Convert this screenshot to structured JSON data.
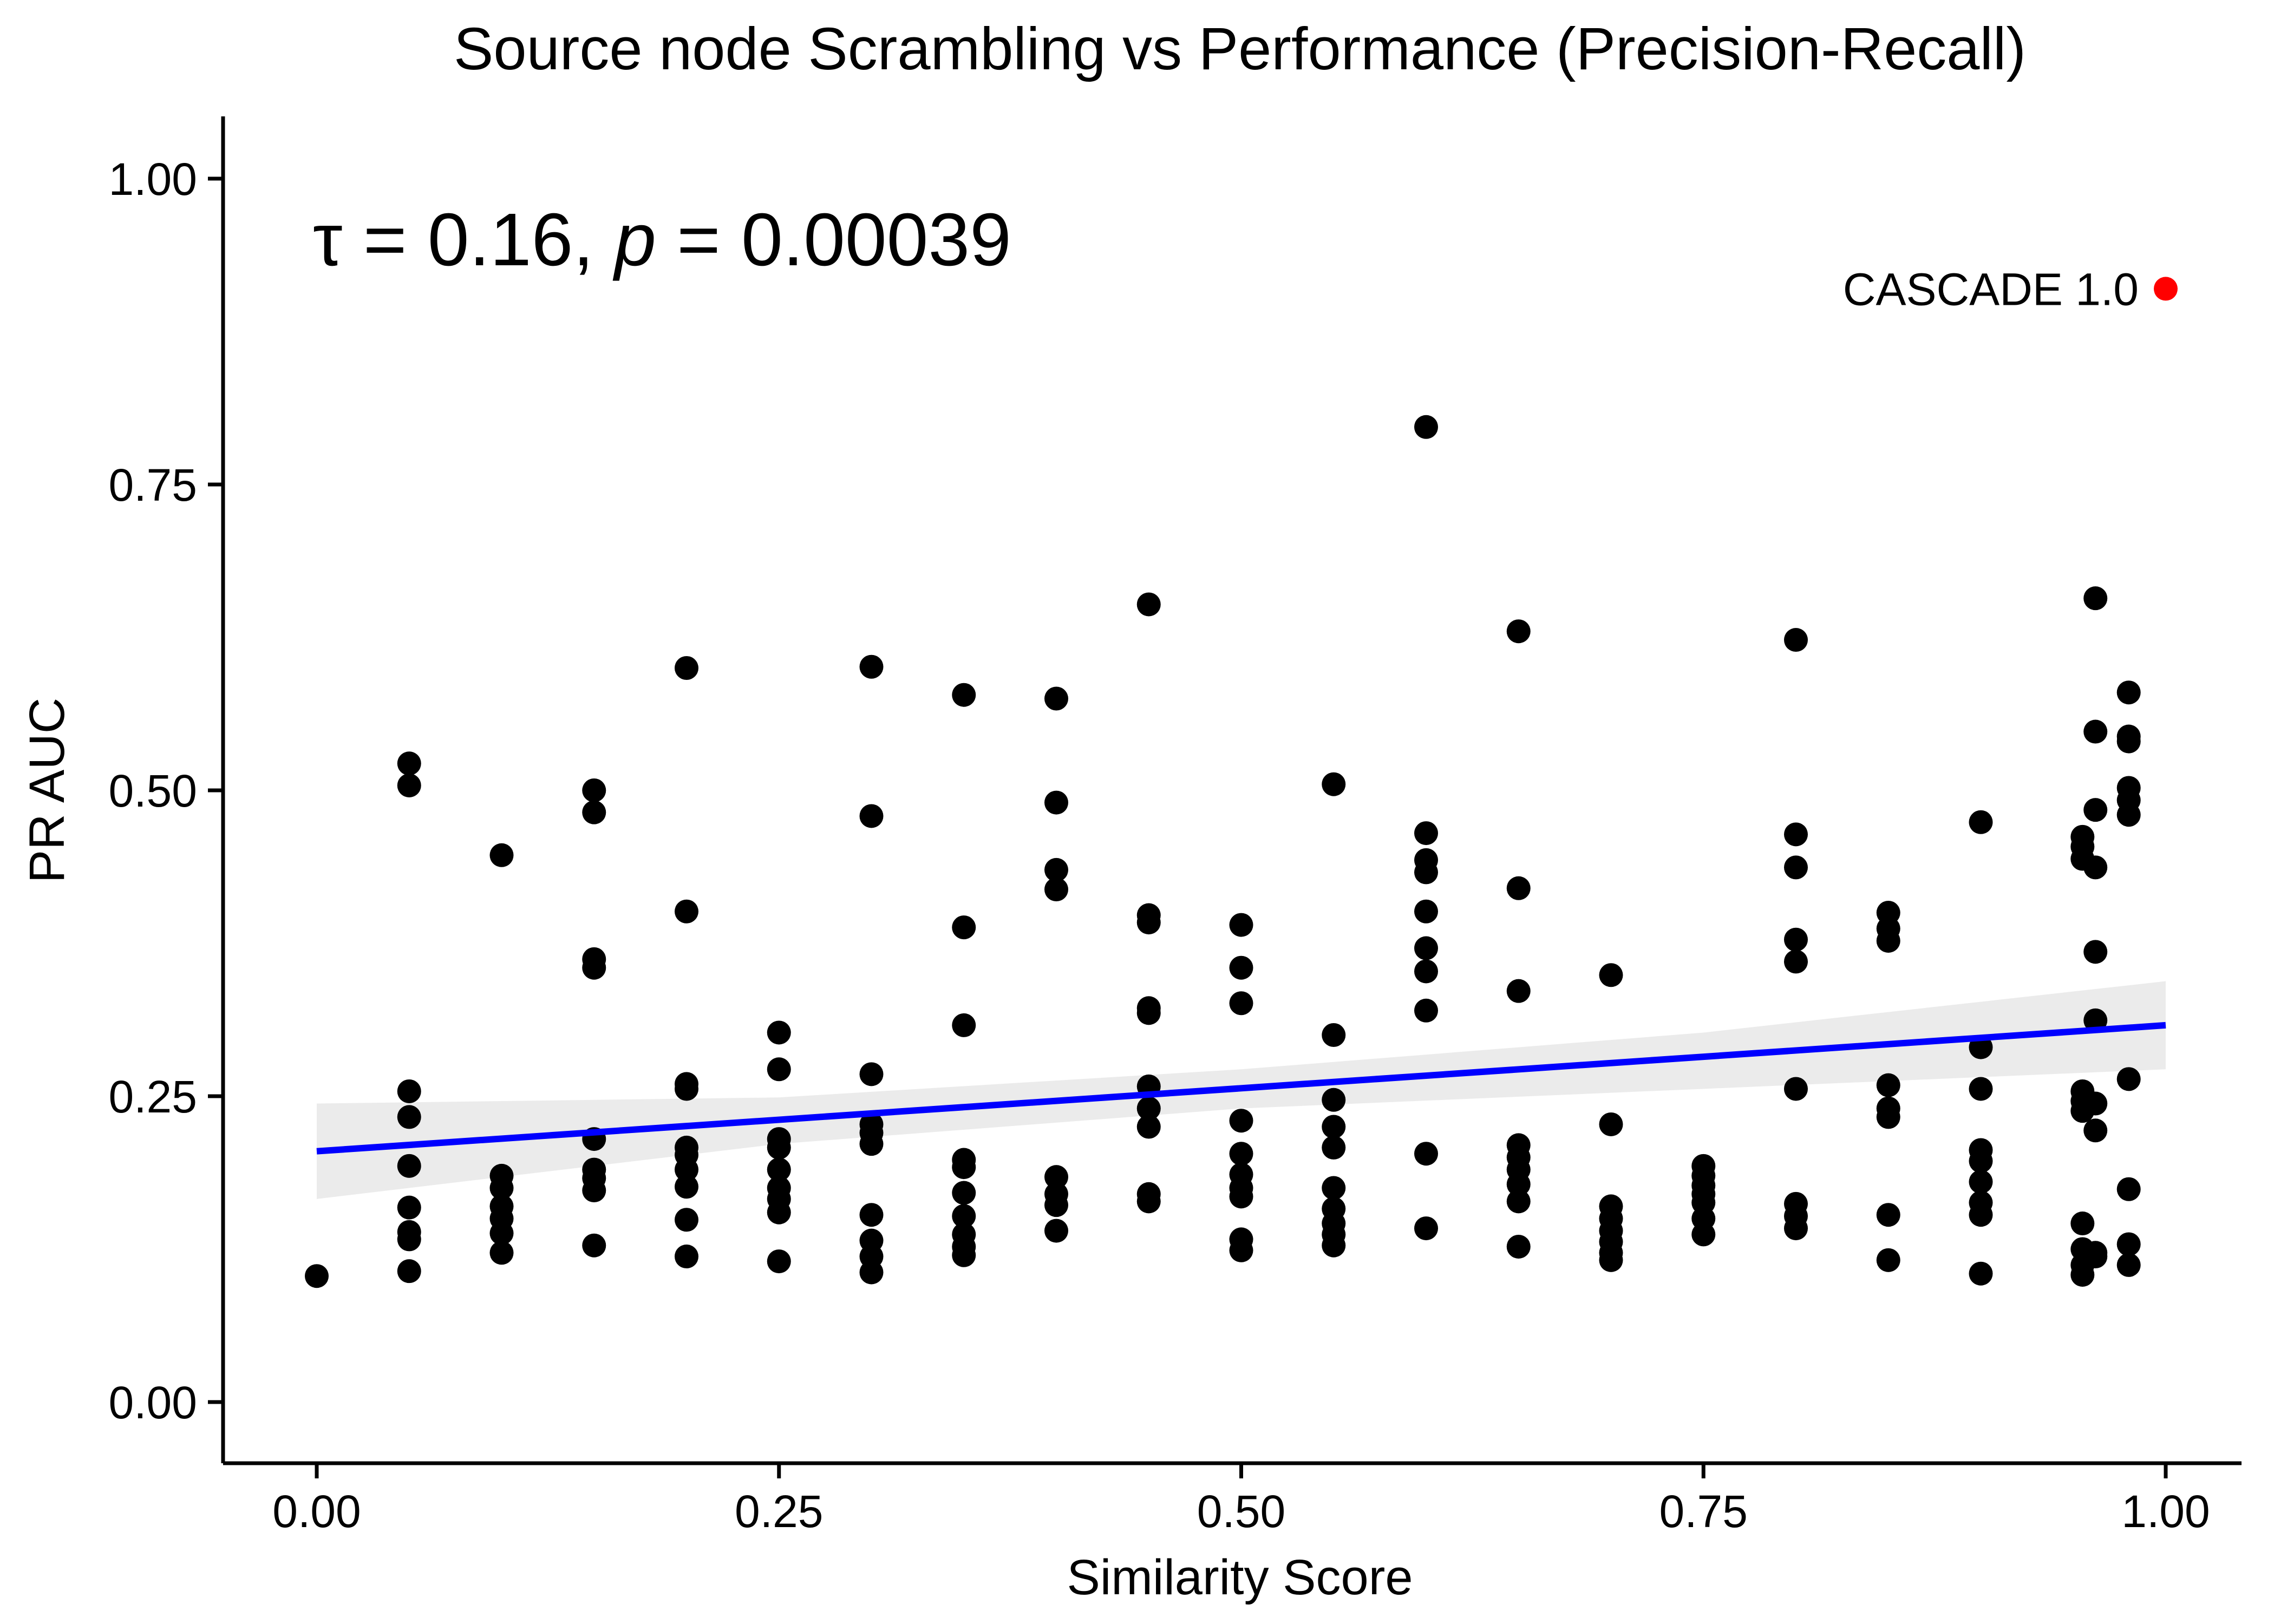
{
  "chart_data": {
    "type": "scatter",
    "title": "Source node Scrambling vs Performance (Precision-Recall)",
    "xlabel": "Similarity Score",
    "ylabel": "PR AUC",
    "xlim": [
      -0.05,
      1.05
    ],
    "ylim": [
      -0.05,
      1.05
    ],
    "x_ticks": [
      0.0,
      0.25,
      0.5,
      0.75,
      1.0
    ],
    "x_tick_labels": [
      "0.00",
      "0.25",
      "0.50",
      "0.75",
      "1.00"
    ],
    "y_ticks": [
      0.0,
      0.25,
      0.5,
      0.75,
      1.0
    ],
    "y_tick_labels": [
      "0.00",
      "0.25",
      "0.50",
      "0.75",
      "1.00"
    ],
    "grid": false,
    "annotation": {
      "tau_symbol": "τ",
      "tau_rest": " = 0.16, ",
      "p_symbol": "p",
      "p_rest": " = 0.00039"
    },
    "points": [
      {
        "x": 0.0,
        "y": 0.103
      },
      {
        "x": 0.05,
        "y": 0.522
      },
      {
        "x": 0.05,
        "y": 0.504
      },
      {
        "x": 0.05,
        "y": 0.254
      },
      {
        "x": 0.05,
        "y": 0.233
      },
      {
        "x": 0.05,
        "y": 0.193
      },
      {
        "x": 0.05,
        "y": 0.159
      },
      {
        "x": 0.05,
        "y": 0.139
      },
      {
        "x": 0.05,
        "y": 0.133
      },
      {
        "x": 0.05,
        "y": 0.107
      },
      {
        "x": 0.1,
        "y": 0.447
      },
      {
        "x": 0.1,
        "y": 0.185
      },
      {
        "x": 0.1,
        "y": 0.175
      },
      {
        "x": 0.1,
        "y": 0.16
      },
      {
        "x": 0.1,
        "y": 0.15
      },
      {
        "x": 0.1,
        "y": 0.138
      },
      {
        "x": 0.1,
        "y": 0.122
      },
      {
        "x": 0.15,
        "y": 0.5
      },
      {
        "x": 0.15,
        "y": 0.482
      },
      {
        "x": 0.15,
        "y": 0.362
      },
      {
        "x": 0.15,
        "y": 0.355
      },
      {
        "x": 0.15,
        "y": 0.215
      },
      {
        "x": 0.15,
        "y": 0.19
      },
      {
        "x": 0.15,
        "y": 0.183
      },
      {
        "x": 0.15,
        "y": 0.173
      },
      {
        "x": 0.15,
        "y": 0.128
      },
      {
        "x": 0.2,
        "y": 0.6
      },
      {
        "x": 0.2,
        "y": 0.401
      },
      {
        "x": 0.2,
        "y": 0.26
      },
      {
        "x": 0.2,
        "y": 0.256
      },
      {
        "x": 0.2,
        "y": 0.208
      },
      {
        "x": 0.2,
        "y": 0.202
      },
      {
        "x": 0.2,
        "y": 0.19
      },
      {
        "x": 0.2,
        "y": 0.176
      },
      {
        "x": 0.2,
        "y": 0.149
      },
      {
        "x": 0.2,
        "y": 0.119
      },
      {
        "x": 0.25,
        "y": 0.302
      },
      {
        "x": 0.25,
        "y": 0.272
      },
      {
        "x": 0.25,
        "y": 0.215
      },
      {
        "x": 0.25,
        "y": 0.208
      },
      {
        "x": 0.25,
        "y": 0.19
      },
      {
        "x": 0.25,
        "y": 0.175
      },
      {
        "x": 0.25,
        "y": 0.166
      },
      {
        "x": 0.25,
        "y": 0.155
      },
      {
        "x": 0.25,
        "y": 0.115
      },
      {
        "x": 0.3,
        "y": 0.601
      },
      {
        "x": 0.3,
        "y": 0.479
      },
      {
        "x": 0.3,
        "y": 0.268
      },
      {
        "x": 0.3,
        "y": 0.227
      },
      {
        "x": 0.3,
        "y": 0.22
      },
      {
        "x": 0.3,
        "y": 0.211
      },
      {
        "x": 0.3,
        "y": 0.153
      },
      {
        "x": 0.3,
        "y": 0.132
      },
      {
        "x": 0.3,
        "y": 0.119
      },
      {
        "x": 0.3,
        "y": 0.106
      },
      {
        "x": 0.35,
        "y": 0.578
      },
      {
        "x": 0.35,
        "y": 0.388
      },
      {
        "x": 0.35,
        "y": 0.308
      },
      {
        "x": 0.35,
        "y": 0.198
      },
      {
        "x": 0.35,
        "y": 0.192
      },
      {
        "x": 0.35,
        "y": 0.171
      },
      {
        "x": 0.35,
        "y": 0.152
      },
      {
        "x": 0.35,
        "y": 0.137
      },
      {
        "x": 0.35,
        "y": 0.127
      },
      {
        "x": 0.35,
        "y": 0.12
      },
      {
        "x": 0.4,
        "y": 0.575
      },
      {
        "x": 0.4,
        "y": 0.49
      },
      {
        "x": 0.4,
        "y": 0.435
      },
      {
        "x": 0.4,
        "y": 0.419
      },
      {
        "x": 0.4,
        "y": 0.184
      },
      {
        "x": 0.4,
        "y": 0.17
      },
      {
        "x": 0.4,
        "y": 0.161
      },
      {
        "x": 0.4,
        "y": 0.14
      },
      {
        "x": 0.45,
        "y": 0.652
      },
      {
        "x": 0.45,
        "y": 0.398
      },
      {
        "x": 0.45,
        "y": 0.392
      },
      {
        "x": 0.45,
        "y": 0.322
      },
      {
        "x": 0.45,
        "y": 0.318
      },
      {
        "x": 0.45,
        "y": 0.258
      },
      {
        "x": 0.45,
        "y": 0.24
      },
      {
        "x": 0.45,
        "y": 0.225
      },
      {
        "x": 0.45,
        "y": 0.17
      },
      {
        "x": 0.45,
        "y": 0.164
      },
      {
        "x": 0.5,
        "y": 0.39
      },
      {
        "x": 0.5,
        "y": 0.355
      },
      {
        "x": 0.5,
        "y": 0.326
      },
      {
        "x": 0.5,
        "y": 0.23
      },
      {
        "x": 0.5,
        "y": 0.203
      },
      {
        "x": 0.5,
        "y": 0.186
      },
      {
        "x": 0.5,
        "y": 0.175
      },
      {
        "x": 0.5,
        "y": 0.168
      },
      {
        "x": 0.5,
        "y": 0.133
      },
      {
        "x": 0.5,
        "y": 0.124
      },
      {
        "x": 0.55,
        "y": 0.505
      },
      {
        "x": 0.55,
        "y": 0.3
      },
      {
        "x": 0.55,
        "y": 0.247
      },
      {
        "x": 0.55,
        "y": 0.225
      },
      {
        "x": 0.55,
        "y": 0.208
      },
      {
        "x": 0.55,
        "y": 0.175
      },
      {
        "x": 0.55,
        "y": 0.158
      },
      {
        "x": 0.55,
        "y": 0.146
      },
      {
        "x": 0.55,
        "y": 0.137
      },
      {
        "x": 0.55,
        "y": 0.128
      },
      {
        "x": 0.6,
        "y": 0.797
      },
      {
        "x": 0.6,
        "y": 0.465
      },
      {
        "x": 0.6,
        "y": 0.443
      },
      {
        "x": 0.6,
        "y": 0.433
      },
      {
        "x": 0.6,
        "y": 0.401
      },
      {
        "x": 0.6,
        "y": 0.371
      },
      {
        "x": 0.6,
        "y": 0.352
      },
      {
        "x": 0.6,
        "y": 0.32
      },
      {
        "x": 0.6,
        "y": 0.203
      },
      {
        "x": 0.6,
        "y": 0.142
      },
      {
        "x": 0.65,
        "y": 0.63
      },
      {
        "x": 0.65,
        "y": 0.42
      },
      {
        "x": 0.65,
        "y": 0.336
      },
      {
        "x": 0.65,
        "y": 0.21
      },
      {
        "x": 0.65,
        "y": 0.2
      },
      {
        "x": 0.65,
        "y": 0.19
      },
      {
        "x": 0.65,
        "y": 0.178
      },
      {
        "x": 0.65,
        "y": 0.164
      },
      {
        "x": 0.65,
        "y": 0.127
      },
      {
        "x": 0.7,
        "y": 0.349
      },
      {
        "x": 0.7,
        "y": 0.227
      },
      {
        "x": 0.7,
        "y": 0.16
      },
      {
        "x": 0.7,
        "y": 0.15
      },
      {
        "x": 0.7,
        "y": 0.14
      },
      {
        "x": 0.7,
        "y": 0.131
      },
      {
        "x": 0.7,
        "y": 0.122
      },
      {
        "x": 0.7,
        "y": 0.116
      },
      {
        "x": 0.75,
        "y": 0.193
      },
      {
        "x": 0.75,
        "y": 0.185
      },
      {
        "x": 0.75,
        "y": 0.177
      },
      {
        "x": 0.75,
        "y": 0.17
      },
      {
        "x": 0.75,
        "y": 0.163
      },
      {
        "x": 0.75,
        "y": 0.15
      },
      {
        "x": 0.75,
        "y": 0.137
      },
      {
        "x": 0.8,
        "y": 0.623
      },
      {
        "x": 0.8,
        "y": 0.464
      },
      {
        "x": 0.8,
        "y": 0.437
      },
      {
        "x": 0.8,
        "y": 0.378
      },
      {
        "x": 0.8,
        "y": 0.36
      },
      {
        "x": 0.8,
        "y": 0.256
      },
      {
        "x": 0.8,
        "y": 0.162
      },
      {
        "x": 0.8,
        "y": 0.152
      },
      {
        "x": 0.8,
        "y": 0.142
      },
      {
        "x": 0.85,
        "y": 0.4
      },
      {
        "x": 0.85,
        "y": 0.387
      },
      {
        "x": 0.85,
        "y": 0.377
      },
      {
        "x": 0.85,
        "y": 0.259
      },
      {
        "x": 0.85,
        "y": 0.24
      },
      {
        "x": 0.85,
        "y": 0.233
      },
      {
        "x": 0.85,
        "y": 0.153
      },
      {
        "x": 0.85,
        "y": 0.116
      },
      {
        "x": 0.9,
        "y": 0.474
      },
      {
        "x": 0.9,
        "y": 0.29
      },
      {
        "x": 0.9,
        "y": 0.256
      },
      {
        "x": 0.9,
        "y": 0.206
      },
      {
        "x": 0.9,
        "y": 0.197
      },
      {
        "x": 0.9,
        "y": 0.18
      },
      {
        "x": 0.9,
        "y": 0.163
      },
      {
        "x": 0.9,
        "y": 0.153
      },
      {
        "x": 0.9,
        "y": 0.105
      },
      {
        "x": 0.955,
        "y": 0.462
      },
      {
        "x": 0.955,
        "y": 0.454
      },
      {
        "x": 0.955,
        "y": 0.444
      },
      {
        "x": 0.955,
        "y": 0.254
      },
      {
        "x": 0.955,
        "y": 0.246
      },
      {
        "x": 0.955,
        "y": 0.238
      },
      {
        "x": 0.955,
        "y": 0.146
      },
      {
        "x": 0.955,
        "y": 0.125
      },
      {
        "x": 0.955,
        "y": 0.112
      },
      {
        "x": 0.955,
        "y": 0.104
      },
      {
        "x": 0.962,
        "y": 0.657
      },
      {
        "x": 0.962,
        "y": 0.548
      },
      {
        "x": 0.962,
        "y": 0.484
      },
      {
        "x": 0.962,
        "y": 0.437
      },
      {
        "x": 0.962,
        "y": 0.368
      },
      {
        "x": 0.962,
        "y": 0.312
      },
      {
        "x": 0.962,
        "y": 0.244
      },
      {
        "x": 0.962,
        "y": 0.222
      },
      {
        "x": 0.962,
        "y": 0.122
      },
      {
        "x": 0.962,
        "y": 0.119
      },
      {
        "x": 0.98,
        "y": 0.58
      },
      {
        "x": 0.98,
        "y": 0.544
      },
      {
        "x": 0.98,
        "y": 0.54
      },
      {
        "x": 0.98,
        "y": 0.502
      },
      {
        "x": 0.98,
        "y": 0.492
      },
      {
        "x": 0.98,
        "y": 0.48
      },
      {
        "x": 0.98,
        "y": 0.264
      },
      {
        "x": 0.98,
        "y": 0.174
      },
      {
        "x": 0.98,
        "y": 0.129
      },
      {
        "x": 0.98,
        "y": 0.112
      }
    ],
    "reference_point": {
      "x": 1.0,
      "y": 0.91,
      "label": "CASCADE 1.0",
      "color": "#ff0000"
    },
    "regression": {
      "x": [
        0.0,
        1.0
      ],
      "y": [
        0.205,
        0.308
      ]
    },
    "confidence_band": {
      "x": [
        0.0,
        0.25,
        0.5,
        0.75,
        1.0
      ],
      "lower": [
        0.166,
        0.211,
        0.24,
        0.256,
        0.272
      ],
      "upper": [
        0.244,
        0.249,
        0.272,
        0.302,
        0.344
      ]
    },
    "colors": {
      "points": "#000000",
      "reference": "#ff0000",
      "regression_line": "#0000ff",
      "confidence_band": "#999999"
    }
  }
}
